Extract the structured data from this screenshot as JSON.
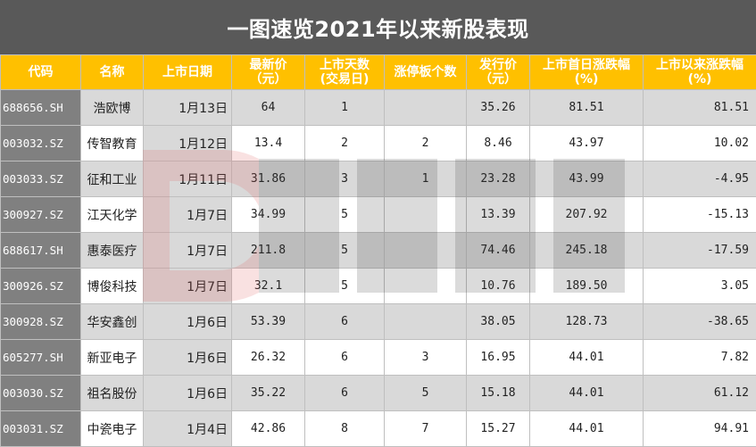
{
  "title": "一图速览2021年以来新股表现",
  "headers": [
    "代码",
    "名称",
    "上市日期",
    "最新价\n（元）",
    "上市天数\n(交易日)",
    "涨停板个数",
    "发行价\n（元）",
    "上市首日涨跌幅\n(%)",
    "上市以来涨跌幅\n(%)"
  ],
  "rows": [
    [
      "688656.SH",
      "浩欧博",
      "1月13日",
      "64",
      "1",
      "",
      "35.26",
      "81.51",
      "81.51"
    ],
    [
      "003032.SZ",
      "传智教育",
      "1月12日",
      "13.4",
      "2",
      "2",
      "8.46",
      "43.97",
      "10.02"
    ],
    [
      "003033.SZ",
      "征和工业",
      "1月11日",
      "31.86",
      "3",
      "1",
      "23.28",
      "43.99",
      "-4.95"
    ],
    [
      "300927.SZ",
      "江天化学",
      "1月7日",
      "34.99",
      "5",
      "",
      "13.39",
      "207.92",
      "-15.13"
    ],
    [
      "688617.SH",
      "惠泰医疗",
      "1月7日",
      "211.8",
      "5",
      "",
      "74.46",
      "245.18",
      "-17.59"
    ],
    [
      "300926.SZ",
      "博俊科技",
      "1月7日",
      "32.1",
      "5",
      "",
      "10.76",
      "189.50",
      "3.05"
    ],
    [
      "300928.SZ",
      "华安鑫创",
      "1月6日",
      "53.39",
      "6",
      "",
      "38.05",
      "128.73",
      "-38.65"
    ],
    [
      "605277.SH",
      "新亚电子",
      "1月6日",
      "26.32",
      "6",
      "3",
      "16.95",
      "44.01",
      "7.82"
    ],
    [
      "003030.SZ",
      "祖名股份",
      "1月6日",
      "35.22",
      "6",
      "5",
      "15.18",
      "44.01",
      "61.12"
    ],
    [
      "003031.SZ",
      "中瓷电子",
      "1月4日",
      "42.86",
      "8",
      "7",
      "15.27",
      "44.01",
      "94.91"
    ]
  ],
  "colors": {
    "title_bg": "#595959",
    "header_bg": "#ffc000",
    "code_bg": "#808080",
    "shade_bg": "#d9d9d9",
    "watermark": "#e06060"
  }
}
